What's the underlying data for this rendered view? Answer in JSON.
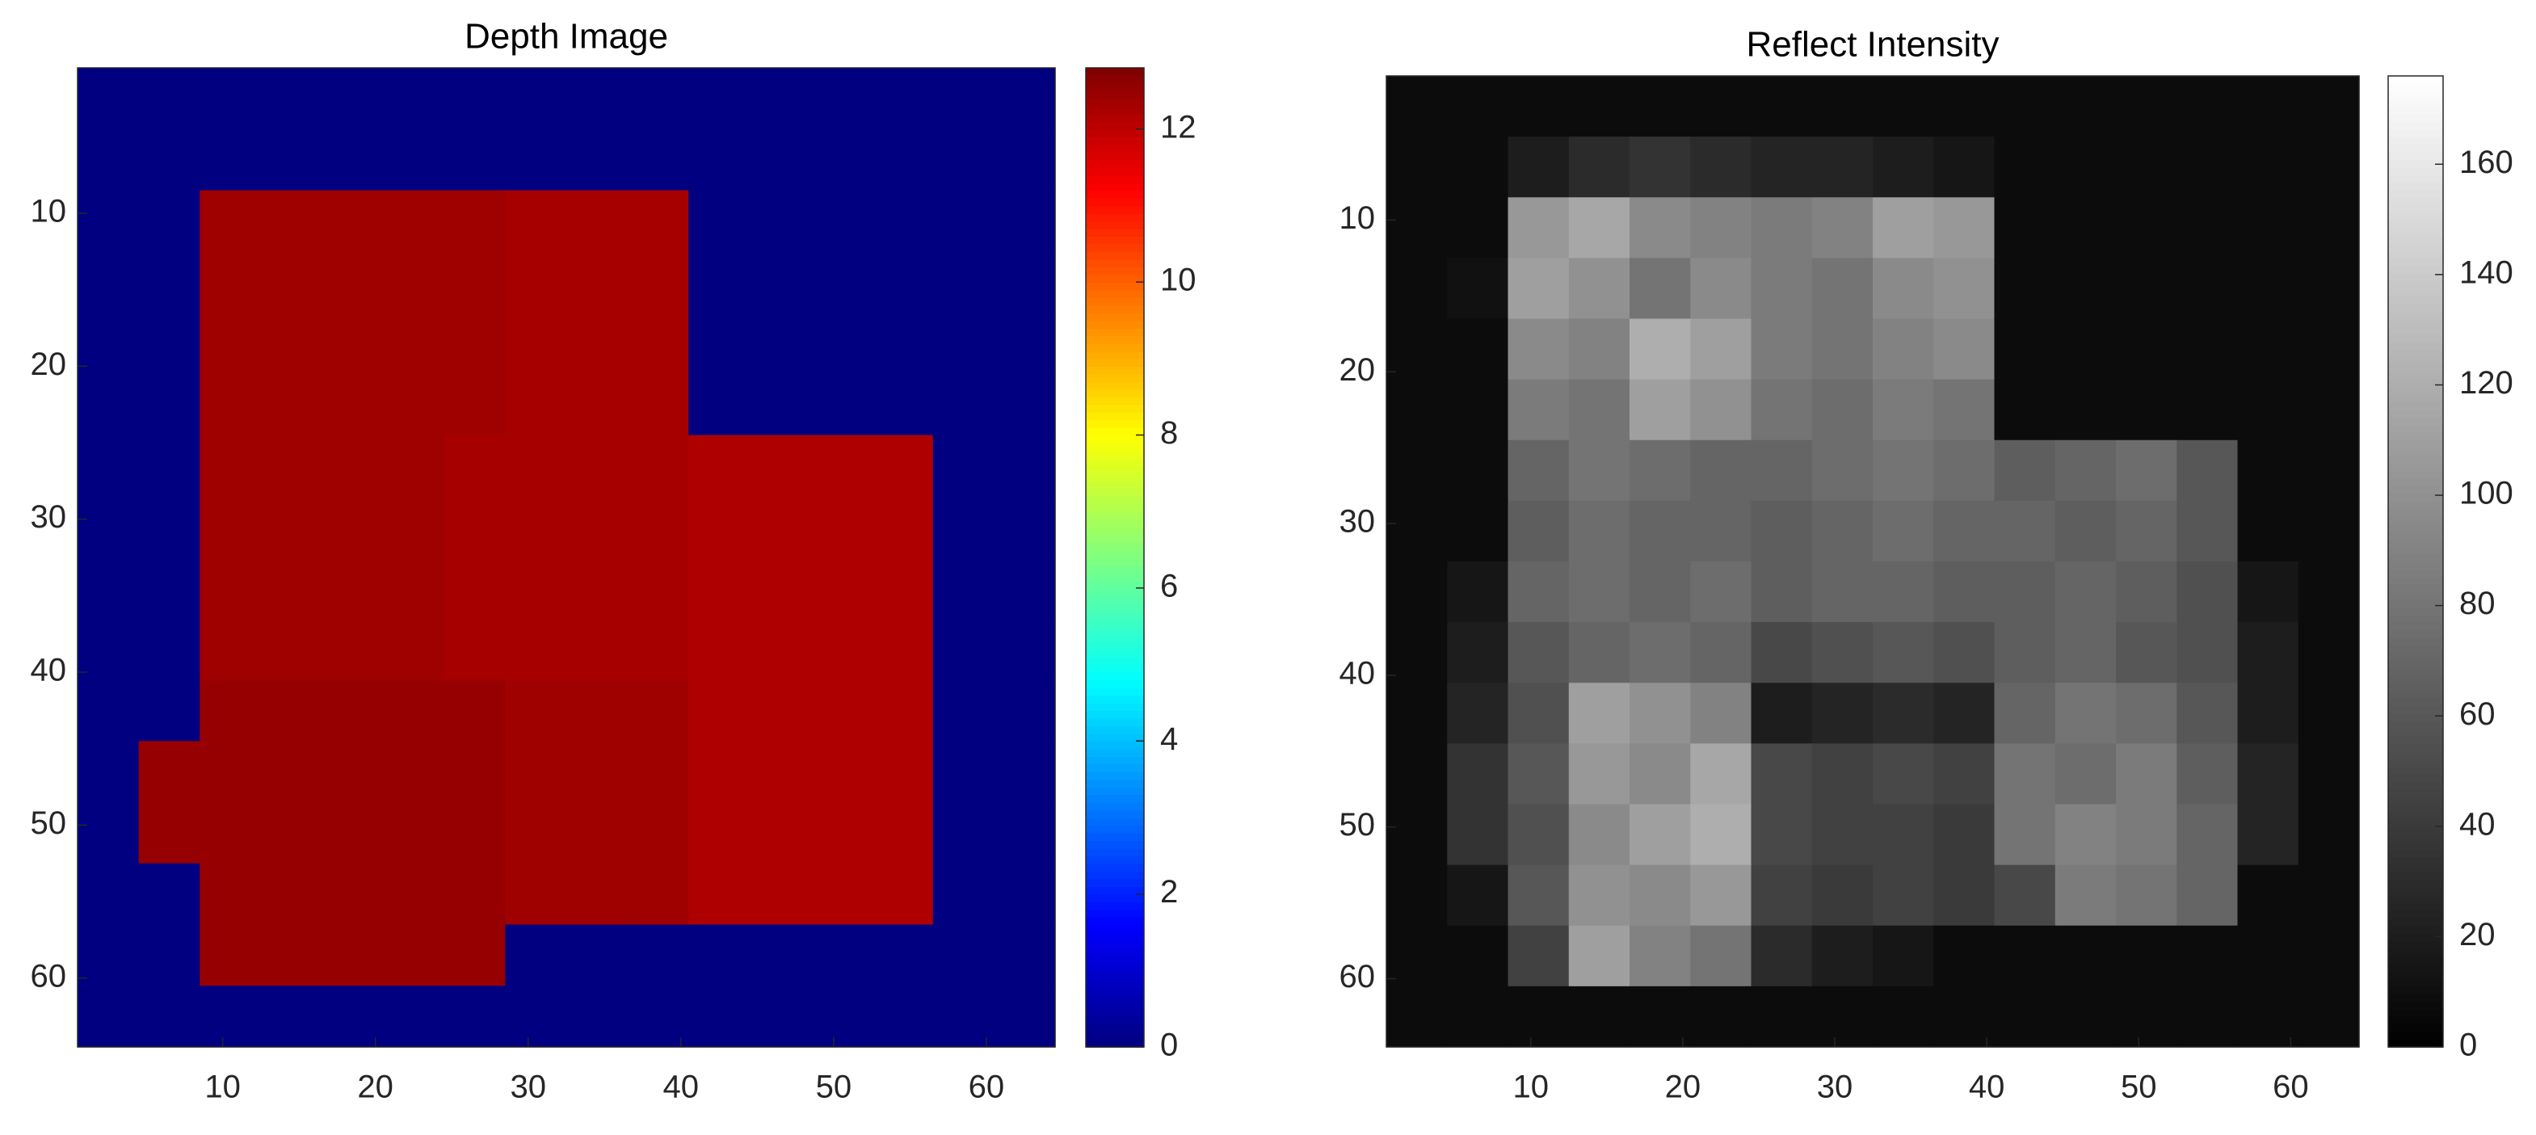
{
  "chart_data": [
    {
      "type": "heatmap",
      "title": "Depth Image",
      "colormap": "jet",
      "yreverse": true,
      "x": [
        2.5,
        6.5,
        10.5,
        14.5,
        18.5,
        22.5,
        26.5,
        30.5,
        34.5,
        38.5,
        42.5,
        46.5,
        50.5,
        54.5,
        58.5,
        62.5
      ],
      "y": [
        2.5,
        6.5,
        10.5,
        14.5,
        18.5,
        22.5,
        26.5,
        30.5,
        34.5,
        38.5,
        42.5,
        46.5,
        50.5,
        54.5,
        58.5,
        62.5
      ],
      "xlim": [
        0.5,
        64.5
      ],
      "ylim": [
        0.5,
        64.5
      ],
      "xticks": [
        10,
        20,
        30,
        40,
        50,
        60
      ],
      "yticks": [
        10,
        20,
        30,
        40,
        50,
        60
      ],
      "clim": [
        0,
        12.8
      ],
      "cticks": [
        0,
        2,
        4,
        6,
        8,
        10,
        12
      ],
      "z": [
        [
          0,
          0,
          0,
          0,
          0,
          0,
          0,
          0,
          0,
          0,
          0,
          0,
          0,
          0,
          0,
          0
        ],
        [
          0,
          0,
          0,
          0,
          0,
          0,
          0,
          0,
          0,
          0,
          0,
          0,
          0,
          0,
          0,
          0
        ],
        [
          0,
          0,
          12.4,
          12.4,
          12.4,
          12.4,
          12.4,
          12.3,
          12.3,
          12.3,
          0,
          0,
          0,
          0,
          0,
          0
        ],
        [
          0,
          0,
          12.4,
          12.4,
          12.4,
          12.4,
          12.4,
          12.3,
          12.3,
          12.3,
          0,
          0,
          0,
          0,
          0,
          0
        ],
        [
          0,
          0,
          12.4,
          12.4,
          12.4,
          12.4,
          12.4,
          12.3,
          12.3,
          12.3,
          0,
          0,
          0,
          0,
          0,
          0
        ],
        [
          0,
          0,
          12.4,
          12.4,
          12.4,
          12.4,
          12.4,
          12.3,
          12.3,
          12.3,
          0,
          0,
          0,
          0,
          0,
          0
        ],
        [
          0,
          0,
          12.4,
          12.4,
          12.4,
          12.4,
          12.3,
          12.3,
          12.3,
          12.3,
          12.2,
          12.2,
          12.2,
          12.2,
          0,
          0
        ],
        [
          0,
          0,
          12.4,
          12.4,
          12.4,
          12.4,
          12.3,
          12.3,
          12.3,
          12.3,
          12.2,
          12.2,
          12.2,
          12.2,
          0,
          0
        ],
        [
          0,
          0,
          12.4,
          12.4,
          12.4,
          12.4,
          12.3,
          12.3,
          12.3,
          12.3,
          12.2,
          12.2,
          12.2,
          12.2,
          0,
          0
        ],
        [
          0,
          0,
          12.4,
          12.4,
          12.4,
          12.4,
          12.3,
          12.3,
          12.3,
          12.3,
          12.2,
          12.2,
          12.2,
          12.2,
          0,
          0
        ],
        [
          0,
          0,
          12.5,
          12.5,
          12.5,
          12.5,
          12.5,
          12.4,
          12.4,
          12.4,
          12.2,
          12.2,
          12.2,
          12.2,
          0,
          0
        ],
        [
          0,
          12.5,
          12.5,
          12.5,
          12.5,
          12.5,
          12.5,
          12.4,
          12.4,
          12.4,
          12.2,
          12.2,
          12.2,
          12.2,
          0,
          0
        ],
        [
          0,
          12.5,
          12.5,
          12.5,
          12.5,
          12.5,
          12.5,
          12.4,
          12.4,
          12.4,
          12.2,
          12.2,
          12.2,
          12.2,
          0,
          0
        ],
        [
          0,
          0,
          12.5,
          12.5,
          12.5,
          12.5,
          12.5,
          12.4,
          12.4,
          12.4,
          12.2,
          12.2,
          12.2,
          12.2,
          0,
          0
        ],
        [
          0,
          0,
          12.5,
          12.5,
          12.5,
          12.5,
          12.5,
          0,
          0,
          0,
          0,
          0,
          0,
          0,
          0,
          0
        ],
        [
          0,
          0,
          0,
          0,
          0,
          0,
          0,
          0,
          0,
          0,
          0,
          0,
          0,
          0,
          0,
          0
        ]
      ]
    },
    {
      "type": "heatmap",
      "title": "Reflect Intensity",
      "colormap": "gray",
      "yreverse": true,
      "x": [
        2.5,
        6.5,
        10.5,
        14.5,
        18.5,
        22.5,
        26.5,
        30.5,
        34.5,
        38.5,
        42.5,
        46.5,
        50.5,
        54.5,
        58.5,
        62.5
      ],
      "y": [
        2.5,
        6.5,
        10.5,
        14.5,
        18.5,
        22.5,
        26.5,
        30.5,
        34.5,
        38.5,
        42.5,
        46.5,
        50.5,
        54.5,
        58.5,
        62.5
      ],
      "xlim": [
        0.5,
        64.5
      ],
      "ylim": [
        0.5,
        64.5
      ],
      "xticks": [
        10,
        20,
        30,
        40,
        50,
        60
      ],
      "yticks": [
        10,
        20,
        30,
        40,
        50,
        60
      ],
      "clim": [
        0,
        176
      ],
      "cticks": [
        0,
        20,
        40,
        60,
        80,
        100,
        120,
        140,
        160
      ],
      "z": [
        [
          8,
          8,
          8,
          8,
          8,
          8,
          8,
          8,
          8,
          8,
          8,
          8,
          8,
          8,
          8,
          8
        ],
        [
          8,
          8,
          20,
          30,
          35,
          30,
          25,
          25,
          20,
          15,
          8,
          8,
          8,
          8,
          8,
          8
        ],
        [
          8,
          8,
          105,
          115,
          95,
          90,
          85,
          90,
          110,
          105,
          8,
          8,
          8,
          8,
          8,
          8
        ],
        [
          8,
          12,
          110,
          100,
          80,
          95,
          85,
          80,
          95,
          100,
          8,
          8,
          8,
          8,
          8,
          8
        ],
        [
          8,
          8,
          95,
          90,
          120,
          110,
          85,
          80,
          90,
          95,
          8,
          8,
          8,
          8,
          8,
          8
        ],
        [
          8,
          8,
          85,
          80,
          110,
          100,
          80,
          75,
          85,
          80,
          8,
          8,
          8,
          8,
          8,
          8
        ],
        [
          8,
          8,
          70,
          80,
          75,
          70,
          70,
          75,
          80,
          75,
          65,
          70,
          75,
          60,
          8,
          8
        ],
        [
          8,
          8,
          65,
          75,
          70,
          70,
          65,
          70,
          75,
          70,
          70,
          65,
          70,
          60,
          8,
          8
        ],
        [
          8,
          15,
          70,
          75,
          70,
          75,
          65,
          70,
          70,
          65,
          65,
          70,
          65,
          55,
          15,
          8
        ],
        [
          8,
          20,
          60,
          70,
          75,
          70,
          50,
          55,
          60,
          55,
          65,
          70,
          60,
          55,
          20,
          8
        ],
        [
          8,
          25,
          55,
          110,
          100,
          90,
          20,
          25,
          30,
          25,
          70,
          80,
          75,
          60,
          20,
          8
        ],
        [
          8,
          35,
          60,
          105,
          95,
          115,
          50,
          45,
          50,
          45,
          80,
          75,
          85,
          65,
          25,
          8
        ],
        [
          8,
          35,
          55,
          95,
          110,
          120,
          50,
          45,
          45,
          40,
          80,
          90,
          85,
          70,
          25,
          8
        ],
        [
          8,
          15,
          60,
          100,
          95,
          105,
          45,
          40,
          45,
          40,
          50,
          85,
          80,
          70,
          8,
          8
        ],
        [
          8,
          8,
          45,
          110,
          90,
          80,
          30,
          20,
          15,
          8,
          8,
          8,
          8,
          8,
          8,
          8
        ],
        [
          8,
          8,
          8,
          8,
          8,
          8,
          8,
          8,
          8,
          8,
          8,
          8,
          8,
          8,
          8,
          8
        ]
      ]
    }
  ]
}
